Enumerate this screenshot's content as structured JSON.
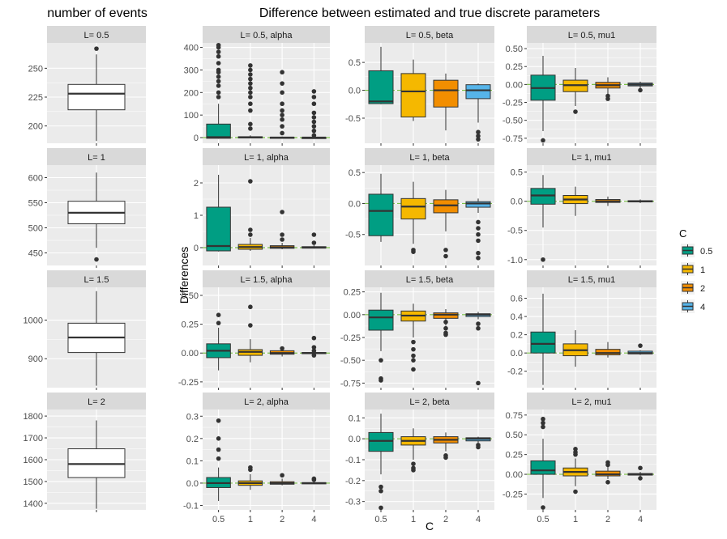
{
  "titles": {
    "left": "number of events",
    "right": "Difference between estimated and true discrete parameters"
  },
  "axis_labels": {
    "y": "Differences",
    "x": "C"
  },
  "legend": {
    "title": "C",
    "items": [
      {
        "label": "0.5",
        "color": "#009E83"
      },
      {
        "label": "1",
        "color": "#F5B800"
      },
      {
        "label": "2",
        "color": "#F28E00"
      },
      {
        "label": "4",
        "color": "#56B4E9"
      }
    ]
  },
  "colors": {
    "panel_bg": "#EBEBEB",
    "strip_bg": "#D9D9D9",
    "grid": "#FFFFFF",
    "zero_line": "#7CC24A",
    "outlier": "#333333"
  },
  "chart_data": [
    {
      "type": "box",
      "panel": "events",
      "strip": "L= 0.5",
      "categories": [
        ""
      ],
      "yticks": [
        200,
        225,
        250
      ],
      "ylim": [
        185,
        272
      ],
      "boxes": [
        {
          "cat": "",
          "whisker_low": 187,
          "q1": 214,
          "median": 228,
          "q3": 236,
          "whisker_high": 262,
          "outliers": [
            267
          ]
        }
      ]
    },
    {
      "type": "box",
      "panel": "events",
      "strip": "L= 1",
      "categories": [
        ""
      ],
      "yticks": [
        450,
        500,
        550,
        600
      ],
      "ylim": [
        425,
        625
      ],
      "boxes": [
        {
          "cat": "",
          "whisker_low": 460,
          "q1": 508,
          "median": 530,
          "q3": 553,
          "whisker_high": 610,
          "outliers": [
            437
          ]
        }
      ]
    },
    {
      "type": "box",
      "panel": "events",
      "strip": "L= 1.5",
      "categories": [
        ""
      ],
      "yticks": [
        900,
        1000
      ],
      "ylim": [
        825,
        1085
      ],
      "boxes": [
        {
          "cat": "",
          "whisker_low": 830,
          "q1": 916,
          "median": 955,
          "q3": 992,
          "whisker_high": 1075,
          "outliers": []
        }
      ]
    },
    {
      "type": "box",
      "panel": "events",
      "strip": "L= 2",
      "categories": [
        ""
      ],
      "yticks": [
        1400,
        1500,
        1600,
        1700,
        1800
      ],
      "ylim": [
        1370,
        1830
      ],
      "boxes": [
        {
          "cat": "",
          "whisker_low": 1375,
          "q1": 1518,
          "median": 1580,
          "q3": 1650,
          "whisker_high": 1780,
          "outliers": []
        }
      ]
    },
    {
      "type": "box",
      "panel": "diff",
      "strip": "L= 0.5, alpha",
      "categories": [
        "0.5",
        "1",
        "2",
        "4"
      ],
      "yticks": [
        0,
        100,
        200,
        300,
        400
      ],
      "ylim": [
        -25,
        420
      ],
      "boxes": [
        {
          "cat": "0.5",
          "whisker_low": -5,
          "q1": -3,
          "median": 2,
          "q3": 60,
          "whisker_high": 150,
          "outliers": [
            180,
            200,
            230,
            250,
            270,
            290,
            300,
            330,
            360,
            380,
            400,
            410
          ]
        },
        {
          "cat": "1",
          "whisker_low": -3,
          "q1": -1,
          "median": 1,
          "q3": 4,
          "whisker_high": 10,
          "outliers": [
            40,
            60,
            120,
            150,
            180,
            200,
            220,
            240,
            260,
            280,
            300,
            320
          ]
        },
        {
          "cat": "2",
          "whisker_low": -2,
          "q1": -1,
          "median": 0,
          "q3": 2,
          "whisker_high": 5,
          "outliers": [
            20,
            50,
            80,
            100,
            120,
            150,
            200,
            240,
            290
          ]
        },
        {
          "cat": "4",
          "whisker_low": -1,
          "q1": -1,
          "median": 0,
          "q3": 1,
          "whisker_high": 3,
          "outliers": [
            10,
            30,
            50,
            70,
            90,
            110,
            150,
            180,
            205
          ]
        }
      ]
    },
    {
      "type": "box",
      "panel": "diff",
      "strip": "L= 0.5, beta",
      "categories": [
        "0.5",
        "1",
        "2",
        "4"
      ],
      "yticks": [
        -0.5,
        0.0,
        0.5
      ],
      "ylim": [
        -0.95,
        0.85
      ],
      "boxes": [
        {
          "cat": "0.5",
          "whisker_low": -0.25,
          "q1": -0.24,
          "median": -0.2,
          "q3": 0.35,
          "whisker_high": 0.78,
          "outliers": []
        },
        {
          "cat": "1",
          "whisker_low": -0.55,
          "q1": -0.48,
          "median": -0.02,
          "q3": 0.3,
          "whisker_high": 0.55,
          "outliers": []
        },
        {
          "cat": "2",
          "whisker_low": -0.72,
          "q1": -0.3,
          "median": 0.0,
          "q3": 0.18,
          "whisker_high": 0.3,
          "outliers": []
        },
        {
          "cat": "4",
          "whisker_low": -0.58,
          "q1": -0.15,
          "median": 0.0,
          "q3": 0.1,
          "whisker_high": 0.12,
          "outliers": [
            -0.75,
            -0.82,
            -0.88
          ]
        }
      ]
    },
    {
      "type": "box",
      "panel": "diff",
      "strip": "L= 0.5, mu1",
      "categories": [
        "0.5",
        "1",
        "2",
        "4"
      ],
      "yticks": [
        -0.75,
        -0.5,
        -0.25,
        0.0,
        0.25,
        0.5
      ],
      "ylim": [
        -0.82,
        0.58
      ],
      "boxes": [
        {
          "cat": "0.5",
          "whisker_low": -0.65,
          "q1": -0.22,
          "median": -0.05,
          "q3": 0.13,
          "whisker_high": 0.4,
          "outliers": [
            -0.78
          ]
        },
        {
          "cat": "1",
          "whisker_low": -0.3,
          "q1": -0.1,
          "median": -0.01,
          "q3": 0.06,
          "whisker_high": 0.23,
          "outliers": [
            -0.38
          ]
        },
        {
          "cat": "2",
          "whisker_low": -0.14,
          "q1": -0.05,
          "median": -0.01,
          "q3": 0.03,
          "whisker_high": 0.1,
          "outliers": [
            -0.16,
            -0.2
          ]
        },
        {
          "cat": "4",
          "whisker_low": -0.05,
          "q1": -0.02,
          "median": 0.0,
          "q3": 0.02,
          "whisker_high": 0.04,
          "outliers": [
            -0.08
          ]
        }
      ]
    },
    {
      "type": "box",
      "panel": "diff",
      "strip": "L= 1, alpha",
      "categories": [
        "0.5",
        "1",
        "2",
        "4"
      ],
      "yticks": [
        0,
        1,
        2
      ],
      "ylim": [
        -0.55,
        2.55
      ],
      "boxes": [
        {
          "cat": "0.5",
          "whisker_low": -0.12,
          "q1": -0.1,
          "median": 0.05,
          "q3": 1.25,
          "whisker_high": 2.25,
          "outliers": []
        },
        {
          "cat": "1",
          "whisker_low": -0.1,
          "q1": -0.05,
          "median": 0.02,
          "q3": 0.1,
          "whisker_high": 0.3,
          "outliers": [
            0.4,
            0.55,
            2.05
          ]
        },
        {
          "cat": "2",
          "whisker_low": -0.05,
          "q1": -0.02,
          "median": 0.01,
          "q3": 0.06,
          "whisker_high": 0.15,
          "outliers": [
            0.25,
            0.4,
            1.1
          ]
        },
        {
          "cat": "4",
          "whisker_low": -0.03,
          "q1": -0.01,
          "median": 0.0,
          "q3": 0.03,
          "whisker_high": 0.08,
          "outliers": [
            0.15,
            0.4
          ]
        }
      ]
    },
    {
      "type": "box",
      "panel": "diff",
      "strip": "L= 1, beta",
      "categories": [
        "0.5",
        "1",
        "2",
        "4"
      ],
      "yticks": [
        -0.5,
        0.0,
        0.5
      ],
      "ylim": [
        -1.0,
        0.62
      ],
      "boxes": [
        {
          "cat": "0.5",
          "whisker_low": -0.62,
          "q1": -0.52,
          "median": -0.12,
          "q3": 0.15,
          "whisker_high": 0.48,
          "outliers": []
        },
        {
          "cat": "1",
          "whisker_low": -0.65,
          "q1": -0.25,
          "median": -0.05,
          "q3": 0.08,
          "whisker_high": 0.35,
          "outliers": [
            -0.75,
            -0.78
          ]
        },
        {
          "cat": "2",
          "whisker_low": -0.45,
          "q1": -0.15,
          "median": -0.03,
          "q3": 0.06,
          "whisker_high": 0.22,
          "outliers": [
            -0.75,
            -0.85
          ]
        },
        {
          "cat": "4",
          "whisker_low": -0.15,
          "q1": -0.06,
          "median": 0.0,
          "q3": 0.03,
          "whisker_high": 0.08,
          "outliers": [
            -0.3,
            -0.4,
            -0.5,
            -0.6,
            -0.8,
            -0.88
          ]
        }
      ]
    },
    {
      "type": "box",
      "panel": "diff",
      "strip": "L= 1, mu1",
      "categories": [
        "0.5",
        "1",
        "2",
        "4"
      ],
      "yticks": [
        -1.0,
        -0.5,
        0.0,
        0.5
      ],
      "ylim": [
        -1.1,
        0.62
      ],
      "boxes": [
        {
          "cat": "0.5",
          "whisker_low": -0.45,
          "q1": -0.05,
          "median": 0.1,
          "q3": 0.22,
          "whisker_high": 0.45,
          "outliers": [
            -1.0
          ]
        },
        {
          "cat": "1",
          "whisker_low": -0.25,
          "q1": -0.04,
          "median": 0.03,
          "q3": 0.1,
          "whisker_high": 0.25,
          "outliers": []
        },
        {
          "cat": "2",
          "whisker_low": -0.08,
          "q1": -0.02,
          "median": 0.0,
          "q3": 0.03,
          "whisker_high": 0.08,
          "outliers": []
        },
        {
          "cat": "4",
          "whisker_low": -0.03,
          "q1": -0.01,
          "median": 0.0,
          "q3": 0.01,
          "whisker_high": 0.03,
          "outliers": []
        }
      ]
    },
    {
      "type": "box",
      "panel": "diff",
      "strip": "L= 1.5, alpha",
      "categories": [
        "0.5",
        "1",
        "2",
        "4"
      ],
      "yticks": [
        -0.25,
        0.0,
        0.25,
        0.5
      ],
      "ylim": [
        -0.3,
        0.57
      ],
      "boxes": [
        {
          "cat": "0.5",
          "whisker_low": -0.15,
          "q1": -0.04,
          "median": 0.02,
          "q3": 0.08,
          "whisker_high": 0.22,
          "outliers": [
            0.26,
            0.33
          ]
        },
        {
          "cat": "1",
          "whisker_low": -0.08,
          "q1": -0.02,
          "median": 0.01,
          "q3": 0.03,
          "whisker_high": 0.12,
          "outliers": [
            0.24,
            0.4
          ]
        },
        {
          "cat": "2",
          "whisker_low": -0.03,
          "q1": -0.01,
          "median": 0.0,
          "q3": 0.02,
          "whisker_high": 0.03,
          "outliers": [
            0.04
          ]
        },
        {
          "cat": "4",
          "whisker_low": -0.02,
          "q1": -0.005,
          "median": 0.0,
          "q3": 0.005,
          "whisker_high": 0.01,
          "outliers": [
            0.02,
            0.05,
            0.13,
            -0.02
          ]
        }
      ]
    },
    {
      "type": "box",
      "panel": "diff",
      "strip": "L= 1.5, beta",
      "categories": [
        "0.5",
        "1",
        "2",
        "4"
      ],
      "yticks": [
        -0.75,
        -0.5,
        -0.25,
        0.0,
        0.25
      ],
      "ylim": [
        -0.8,
        0.3
      ],
      "boxes": [
        {
          "cat": "0.5",
          "whisker_low": -0.4,
          "q1": -0.17,
          "median": -0.03,
          "q3": 0.05,
          "whisker_high": 0.24,
          "outliers": [
            -0.5,
            -0.7,
            -0.72
          ]
        },
        {
          "cat": "1",
          "whisker_low": -0.25,
          "q1": -0.07,
          "median": -0.01,
          "q3": 0.04,
          "whisker_high": 0.12,
          "outliers": [
            -0.3,
            -0.38,
            -0.45,
            -0.5,
            -0.6
          ]
        },
        {
          "cat": "2",
          "whisker_low": -0.12,
          "q1": -0.04,
          "median": 0.0,
          "q3": 0.02,
          "whisker_high": 0.06,
          "outliers": [
            -0.15,
            -0.2,
            -0.22,
            -0.08
          ]
        },
        {
          "cat": "4",
          "whisker_low": -0.05,
          "q1": -0.02,
          "median": 0.0,
          "q3": 0.01,
          "whisker_high": 0.03,
          "outliers": [
            -0.1,
            -0.15,
            -0.75
          ]
        }
      ]
    },
    {
      "type": "box",
      "panel": "diff",
      "strip": "L= 1.5, mu1",
      "categories": [
        "0.5",
        "1",
        "2",
        "4"
      ],
      "yticks": [
        -0.2,
        0.0,
        0.2,
        0.4,
        0.6
      ],
      "ylim": [
        -0.38,
        0.72
      ],
      "boxes": [
        {
          "cat": "0.5",
          "whisker_low": -0.35,
          "q1": 0.0,
          "median": 0.1,
          "q3": 0.23,
          "whisker_high": 0.65,
          "outliers": []
        },
        {
          "cat": "1",
          "whisker_low": -0.15,
          "q1": -0.03,
          "median": 0.03,
          "q3": 0.1,
          "whisker_high": 0.25,
          "outliers": []
        },
        {
          "cat": "2",
          "whisker_low": -0.05,
          "q1": -0.02,
          "median": 0.0,
          "q3": 0.04,
          "whisker_high": 0.12,
          "outliers": []
        },
        {
          "cat": "4",
          "whisker_low": -0.02,
          "q1": -0.01,
          "median": 0.0,
          "q3": 0.02,
          "whisker_high": 0.03,
          "outliers": [
            0.08
          ]
        }
      ]
    },
    {
      "type": "box",
      "panel": "diff",
      "strip": "L= 2, alpha",
      "categories": [
        "0.5",
        "1",
        "2",
        "4"
      ],
      "yticks": [
        -0.1,
        0.0,
        0.1,
        0.2,
        0.3
      ],
      "ylim": [
        -0.12,
        0.33
      ],
      "boxes": [
        {
          "cat": "0.5",
          "whisker_low": -0.08,
          "q1": -0.02,
          "median": 0.0,
          "q3": 0.025,
          "whisker_high": 0.07,
          "outliers": [
            0.11,
            0.15,
            0.2,
            0.28
          ]
        },
        {
          "cat": "1",
          "whisker_low": -0.03,
          "q1": -0.01,
          "median": 0.0,
          "q3": 0.01,
          "whisker_high": 0.04,
          "outliers": [
            0.06,
            0.07
          ]
        },
        {
          "cat": "2",
          "whisker_low": -0.01,
          "q1": -0.005,
          "median": 0.0,
          "q3": 0.006,
          "whisker_high": 0.02,
          "outliers": [
            0.035
          ]
        },
        {
          "cat": "4",
          "whisker_low": -0.005,
          "q1": -0.002,
          "median": 0.0,
          "q3": 0.002,
          "whisker_high": 0.01,
          "outliers": [
            0.015,
            0.02
          ]
        }
      ]
    },
    {
      "type": "box",
      "panel": "diff",
      "strip": "L= 2, beta",
      "categories": [
        "0.5",
        "1",
        "2",
        "4"
      ],
      "yticks": [
        -0.3,
        -0.2,
        -0.1,
        0.0,
        0.1
      ],
      "ylim": [
        -0.34,
        0.14
      ],
      "boxes": [
        {
          "cat": "0.5",
          "whisker_low": -0.17,
          "q1": -0.06,
          "median": -0.01,
          "q3": 0.03,
          "whisker_high": 0.12,
          "outliers": [
            -0.23,
            -0.25,
            -0.33
          ]
        },
        {
          "cat": "1",
          "whisker_low": -0.1,
          "q1": -0.03,
          "median": -0.01,
          "q3": 0.01,
          "whisker_high": 0.05,
          "outliers": [
            -0.12,
            -0.14,
            -0.15
          ]
        },
        {
          "cat": "2",
          "whisker_low": -0.06,
          "q1": -0.02,
          "median": -0.005,
          "q3": 0.01,
          "whisker_high": 0.03,
          "outliers": [
            -0.08,
            -0.09
          ]
        },
        {
          "cat": "4",
          "whisker_low": -0.02,
          "q1": -0.01,
          "median": 0.0,
          "q3": 0.005,
          "whisker_high": 0.01,
          "outliers": [
            -0.03,
            -0.04
          ]
        }
      ]
    },
    {
      "type": "box",
      "panel": "diff",
      "strip": "L= 2, mu1",
      "categories": [
        "0.5",
        "1",
        "2",
        "4"
      ],
      "yticks": [
        -0.25,
        0.0,
        0.25,
        0.5,
        0.75
      ],
      "ylim": [
        -0.45,
        0.82
      ],
      "boxes": [
        {
          "cat": "0.5",
          "whisker_low": -0.3,
          "q1": 0.0,
          "median": 0.05,
          "q3": 0.17,
          "whisker_high": 0.45,
          "outliers": [
            -0.42,
            0.6,
            0.65,
            0.7
          ]
        },
        {
          "cat": "1",
          "whisker_low": -0.15,
          "q1": -0.02,
          "median": 0.03,
          "q3": 0.08,
          "whisker_high": 0.2,
          "outliers": [
            -0.22,
            0.25,
            0.28,
            0.32
          ]
        },
        {
          "cat": "2",
          "whisker_low": -0.06,
          "q1": -0.02,
          "median": 0.0,
          "q3": 0.04,
          "whisker_high": 0.1,
          "outliers": [
            -0.1,
            0.12,
            0.15
          ]
        },
        {
          "cat": "4",
          "whisker_low": -0.03,
          "q1": -0.01,
          "median": 0.0,
          "q3": 0.01,
          "whisker_high": 0.03,
          "outliers": [
            -0.05,
            0.08
          ]
        }
      ]
    }
  ]
}
